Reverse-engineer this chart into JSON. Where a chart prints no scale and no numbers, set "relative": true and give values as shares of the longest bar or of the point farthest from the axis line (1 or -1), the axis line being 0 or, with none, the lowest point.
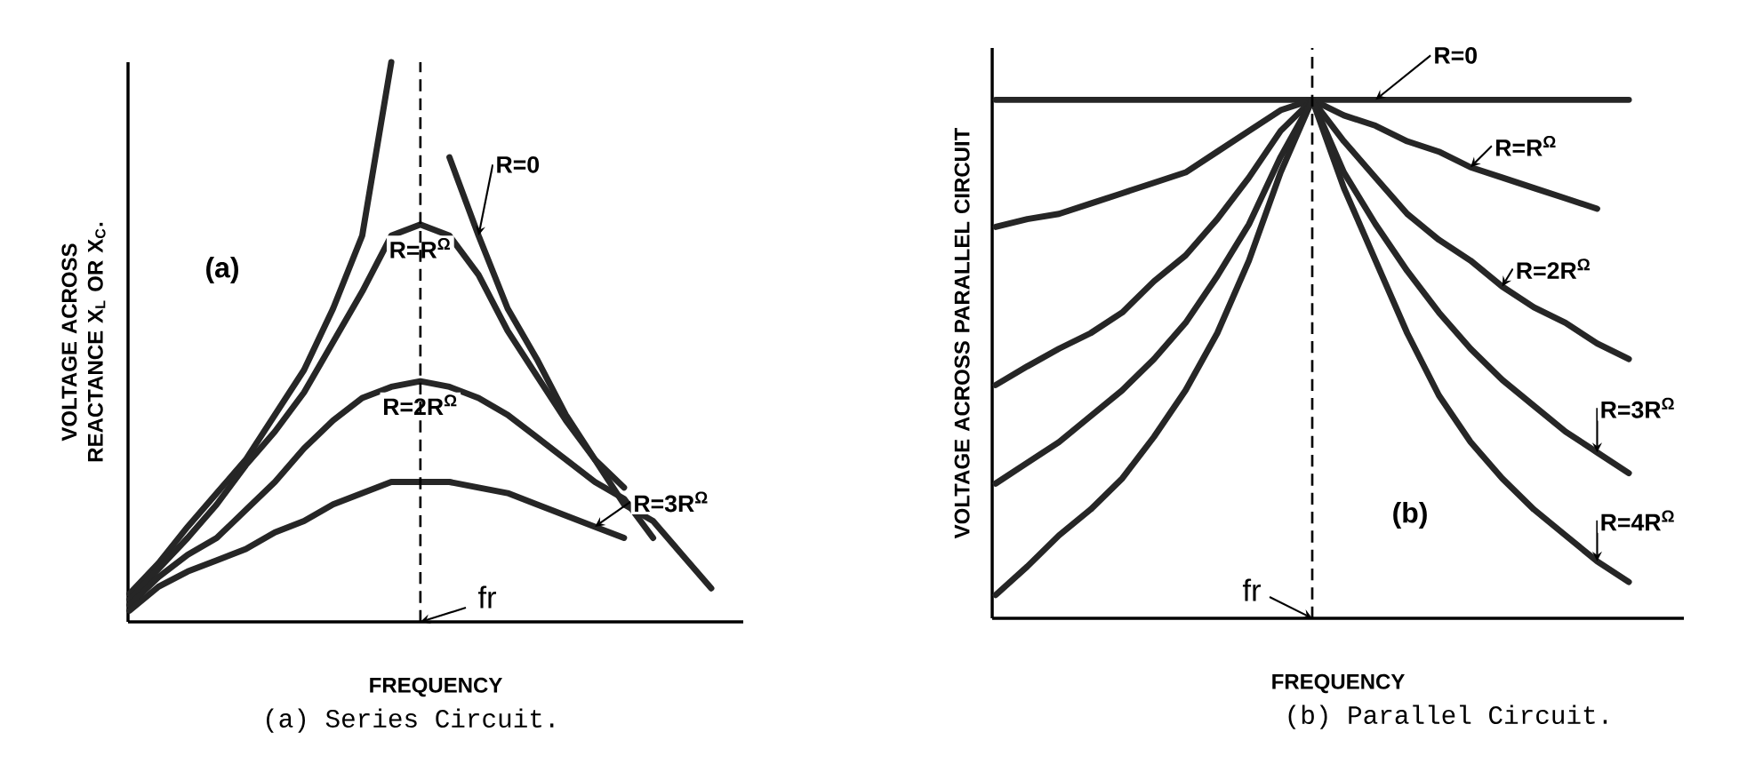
{
  "chart_data": [
    {
      "type": "line",
      "relative": true,
      "title": "(a) Series Circuit.",
      "xlabel": "FREQUENCY",
      "ylabel": "VOLTAGE ACROSS REACTANCE X$_{L}$ OR X$_{C}$.",
      "categories": [
        null,
        null,
        null,
        null,
        null,
        null,
        null,
        null,
        null,
        null,
        null,
        null,
        null,
        null,
        null,
        null,
        null,
        null,
        null,
        null,
        null
      ],
      "series": [
        {
          "name": "R=0",
          "color": "#262626",
          "values": [
            0.05,
            0.105,
            0.17,
            0.23,
            0.29,
            0.37,
            0.45,
            0.56,
            0.69,
            1.0,
            null,
            0.83,
            0.69,
            0.56,
            0.47,
            0.37,
            0.29,
            0.21,
            0.18,
            0.12,
            0.06
          ]
        },
        {
          "name": "R=R$^{Ω}$",
          "color": "#262626",
          "values": [
            0.04,
            0.095,
            0.15,
            0.21,
            0.28,
            0.34,
            0.41,
            0.5,
            0.59,
            0.69,
            0.71,
            0.69,
            0.62,
            0.52,
            0.44,
            0.36,
            0.29,
            0.24,
            null,
            null,
            null
          ]
        },
        {
          "name": "R=2R$^{Ω}$",
          "color": "#262626",
          "values": [
            0.03,
            0.08,
            0.12,
            0.15,
            0.2,
            0.25,
            0.31,
            0.36,
            0.4,
            0.42,
            0.43,
            0.42,
            0.4,
            0.37,
            0.33,
            0.29,
            0.25,
            0.22,
            0.15,
            null,
            null
          ]
        },
        {
          "name": "R=3R$^{Ω}$",
          "color": "#262626",
          "values": [
            0.02,
            0.063,
            0.09,
            0.11,
            0.13,
            0.16,
            0.18,
            0.21,
            0.23,
            0.25,
            0.25,
            0.25,
            0.24,
            0.23,
            0.21,
            0.19,
            0.17,
            0.15,
            null,
            null,
            null
          ]
        }
      ],
      "annotations": [
        "(a)",
        "fr"
      ]
    },
    {
      "type": "line",
      "relative": true,
      "title": "(b) Parallel Circuit.",
      "xlabel": "FREQUENCY",
      "ylabel": "VOLTAGE ACROSS PARALLEL CIRCUIT",
      "categories": [
        null,
        null,
        null,
        null,
        null,
        null,
        null,
        null,
        null,
        null,
        null,
        null,
        null,
        null,
        null,
        null,
        null,
        null,
        null,
        null,
        null
      ],
      "series": [
        {
          "name": "R=0",
          "color": "#262626",
          "values": [
            1,
            1,
            1,
            1,
            1,
            1,
            1,
            1,
            1,
            1,
            1,
            1,
            1,
            1,
            1,
            1,
            1,
            1,
            1,
            1,
            1
          ]
        },
        {
          "name": "R=R$^{Ω}$",
          "color": "#262626",
          "values": [
            0.755,
            0.77,
            0.78,
            0.8,
            0.82,
            0.84,
            0.86,
            0.9,
            0.94,
            0.98,
            1,
            0.97,
            0.95,
            0.92,
            0.9,
            0.87,
            0.85,
            0.83,
            0.81,
            0.79,
            null
          ]
        },
        {
          "name": "R=2R$^{Ω}$",
          "color": "#262626",
          "values": [
            0.45,
            0.486,
            0.52,
            0.55,
            0.59,
            0.65,
            0.7,
            0.77,
            0.85,
            0.94,
            1,
            0.92,
            0.85,
            0.78,
            0.73,
            0.69,
            0.64,
            0.6,
            0.57,
            0.53,
            0.5
          ]
        },
        {
          "name": "R=3R$^{Ω}$",
          "color": "#262626",
          "values": [
            0.26,
            0.3,
            0.34,
            0.39,
            0.44,
            0.5,
            0.57,
            0.66,
            0.76,
            0.89,
            1,
            0.86,
            0.76,
            0.67,
            0.59,
            0.52,
            0.46,
            0.41,
            0.36,
            0.32,
            0.28
          ]
        },
        {
          "name": "R=4R$^{Ω}$",
          "color": "#262626",
          "values": [
            0.045,
            0.1,
            0.16,
            0.21,
            0.27,
            0.35,
            0.44,
            0.55,
            0.69,
            0.86,
            1,
            0.83,
            0.69,
            0.55,
            0.43,
            0.34,
            0.27,
            0.21,
            0.16,
            0.11,
            0.07
          ]
        }
      ],
      "annotations": [
        "(b)",
        "fr"
      ]
    }
  ]
}
